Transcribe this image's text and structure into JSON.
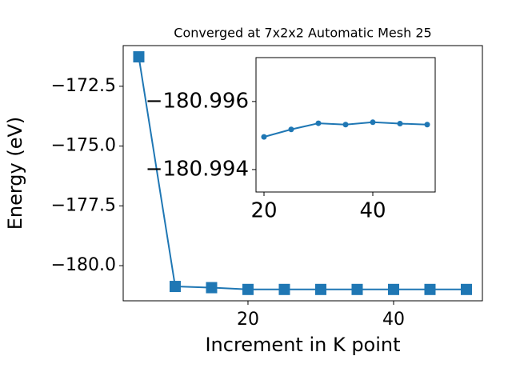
{
  "chart_data": [
    {
      "type": "line",
      "title": "Converged at 7x2x2 Automatic Mesh 25",
      "xlabel": "Increment in K point",
      "ylabel": "Energy (eV)",
      "x": [
        5,
        10,
        15,
        20,
        25,
        30,
        35,
        40,
        45,
        50
      ],
      "values": [
        -171.27,
        -180.87,
        -180.92,
        -180.99496,
        -180.99518,
        -180.99536,
        -180.99532,
        -180.99539,
        -180.99535,
        -180.99532
      ],
      "color": "#1f77b4",
      "marker": "square",
      "xlim": [
        2.86,
        52.2
      ],
      "ylim": [
        -181.47,
        -170.8
      ],
      "xticks": [
        20,
        40
      ],
      "yticks": [
        {
          "value": -172.5,
          "label": "−172.5"
        },
        {
          "value": -175.0,
          "label": "−175.0"
        },
        {
          "value": -177.5,
          "label": "−177.5"
        },
        {
          "value": -180.0,
          "label": "−180.0"
        }
      ]
    },
    {
      "type": "line",
      "x": [
        20,
        25,
        30,
        35,
        40,
        45,
        50
      ],
      "values": [
        -180.99496,
        -180.99518,
        -180.99536,
        -180.99532,
        -180.99539,
        -180.99535,
        -180.99532
      ],
      "color": "#1f77b4",
      "marker": "circle",
      "xlim": [
        18.53,
        51.47
      ],
      "ylim": [
        -180.99334,
        -180.99729
      ],
      "xticks": [
        20,
        40
      ],
      "yticks": [
        {
          "value": -180.996,
          "label": "−180.996"
        },
        {
          "value": -180.994,
          "label": "−180.994"
        }
      ]
    }
  ]
}
